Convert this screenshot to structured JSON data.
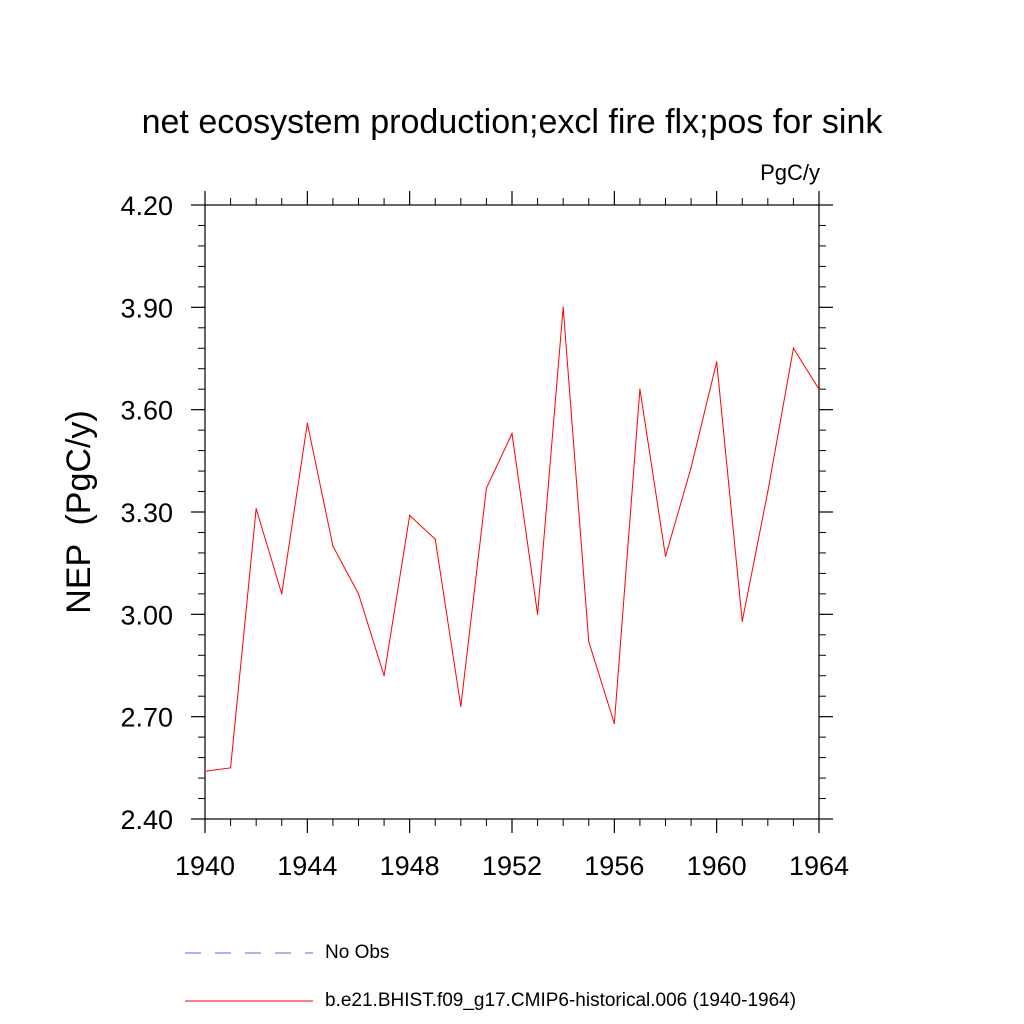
{
  "chart_data": {
    "type": "line",
    "title": "net ecosystem production;excl fire flx;pos for sink",
    "units": "PgC/y",
    "ylabel": "NEP  (PgC/y)",
    "xlabel": "",
    "xlim": [
      1940,
      1964
    ],
    "ylim": [
      2.4,
      4.2
    ],
    "xticks": [
      "1940",
      "1944",
      "1948",
      "1952",
      "1956",
      "1960",
      "1964"
    ],
    "yticks": [
      "2.40",
      "2.70",
      "3.00",
      "3.30",
      "3.60",
      "3.90",
      "4.20"
    ],
    "grid": false,
    "series": [
      {
        "name": "b.e21.BHIST.f09_g17.CMIP6-historical.006 (1940-1964)",
        "color": "#ff0000",
        "style": "solid",
        "x": [
          1940,
          1941,
          1942,
          1943,
          1944,
          1945,
          1946,
          1947,
          1948,
          1949,
          1950,
          1951,
          1952,
          1953,
          1954,
          1955,
          1956,
          1957,
          1958,
          1959,
          1960,
          1961,
          1962,
          1963,
          1964
        ],
        "y": [
          2.54,
          2.55,
          3.31,
          3.06,
          3.56,
          3.2,
          3.06,
          2.82,
          3.29,
          3.22,
          2.73,
          3.37,
          3.53,
          3.0,
          3.9,
          2.92,
          2.68,
          3.66,
          3.17,
          3.43,
          3.74,
          2.98,
          3.36,
          3.78,
          3.66
        ]
      }
    ],
    "legend": {
      "placement": "bottom",
      "entries": [
        {
          "label": "No Obs",
          "color": "#6666cc",
          "style": "dashed"
        },
        {
          "label": "b.e21.BHIST.f09_g17.CMIP6-historical.006 (1940-1964)",
          "color": "#ff0000",
          "style": "solid"
        }
      ]
    }
  }
}
